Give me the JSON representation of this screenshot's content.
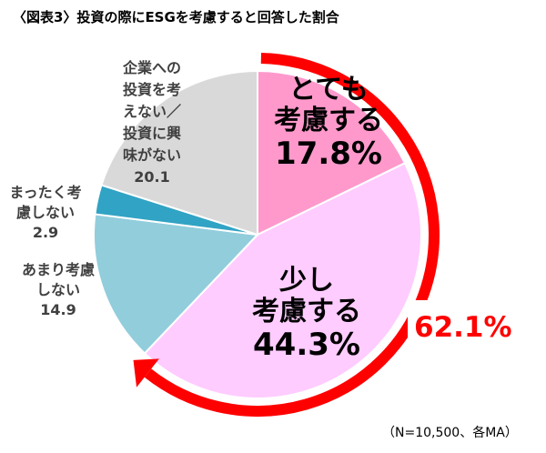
{
  "title": "〈図表3〉投資の際にESGを考慮すると回答した割合",
  "note": "（N=10,500、各MA）",
  "colors": {
    "arrow": "#ff0000",
    "total_label": "#ff0000"
  },
  "chart_data": {
    "type": "pie",
    "title": "〈図表3〉投資の際にESGを考慮すると回答した割合",
    "slices": [
      {
        "label_lines": [
          "とても",
          "考慮する"
        ],
        "value": 17.8,
        "value_label": "17.8%",
        "color": "#ff99cc"
      },
      {
        "label_lines": [
          "少し",
          "考慮する"
        ],
        "value": 44.3,
        "value_label": "44.3%",
        "color": "#ffccff"
      },
      {
        "label_lines": [
          "あまり考慮",
          "しない"
        ],
        "value": 14.9,
        "value_label": "14.9",
        "color": "#92cddc"
      },
      {
        "label_lines": [
          "まったく考",
          "慮しない"
        ],
        "value": 2.9,
        "value_label": "2.9",
        "color": "#31a3c4"
      },
      {
        "label_lines": [
          "企業への",
          "投資を考",
          "えない／",
          "投資に興",
          "味がない"
        ],
        "value": 20.1,
        "value_label": "20.1",
        "color": "#d9d9d9"
      }
    ],
    "annotation": {
      "text": "62.1%",
      "description_slices": [
        0,
        1
      ]
    }
  }
}
